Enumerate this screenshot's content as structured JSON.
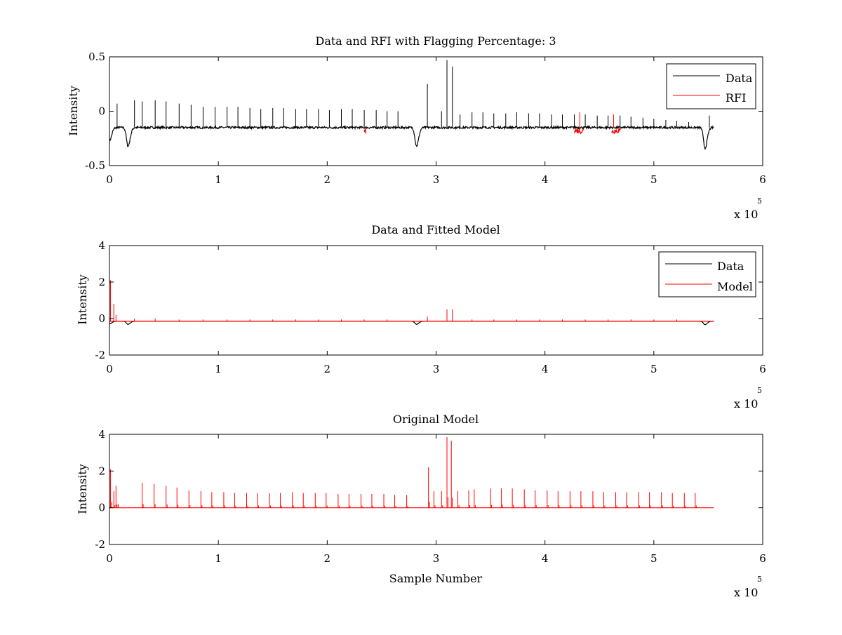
{
  "chart_data": [
    {
      "type": "line",
      "title": "Data and RFI with Flagging Percentage: 3",
      "xlabel": "",
      "ylabel": "Intensity",
      "xlim": [
        0,
        6
      ],
      "ylim": [
        -0.5,
        0.5
      ],
      "xticks": [
        "0",
        "1",
        "2",
        "3",
        "4",
        "5",
        "6"
      ],
      "yticks": [
        "-0.5",
        "0",
        "0.5"
      ],
      "x_multiplier": "x 10",
      "x_multiplier_exponent": "5",
      "grid": false,
      "legend": {
        "placement": "top-right",
        "entries": [
          {
            "label": "Data",
            "color": "#000000"
          },
          {
            "label": "RFI",
            "color": "#ff0000"
          }
        ]
      },
      "series": [
        {
          "name": "Data",
          "color": "#000000",
          "baseline": -0.15,
          "noise": 0.02,
          "x_end": 5.55,
          "dips": [
            {
              "x": 0.0,
              "y": -0.27
            },
            {
              "x": 0.17,
              "y": -0.32
            },
            {
              "x": 2.82,
              "y": -0.32
            },
            {
              "x": 5.47,
              "y": -0.34
            }
          ],
          "spikes": [
            {
              "x": 0.07,
              "y": 0.07
            },
            {
              "x": 0.23,
              "y": 0.1
            },
            {
              "x": 0.3,
              "y": 0.09
            },
            {
              "x": 0.42,
              "y": 0.1
            },
            {
              "x": 0.52,
              "y": 0.09
            },
            {
              "x": 0.64,
              "y": 0.07
            },
            {
              "x": 0.75,
              "y": 0.06
            },
            {
              "x": 0.86,
              "y": 0.04
            },
            {
              "x": 0.97,
              "y": 0.04
            },
            {
              "x": 1.08,
              "y": 0.04
            },
            {
              "x": 1.18,
              "y": 0.04
            },
            {
              "x": 1.29,
              "y": 0.03
            },
            {
              "x": 1.39,
              "y": 0.02
            },
            {
              "x": 1.5,
              "y": 0.03
            },
            {
              "x": 1.6,
              "y": 0.03
            },
            {
              "x": 1.71,
              "y": 0.02
            },
            {
              "x": 1.81,
              "y": 0.02
            },
            {
              "x": 1.92,
              "y": 0.02
            },
            {
              "x": 2.02,
              "y": 0.01
            },
            {
              "x": 2.13,
              "y": 0.02
            },
            {
              "x": 2.23,
              "y": 0.02
            },
            {
              "x": 2.34,
              "y": 0.01
            },
            {
              "x": 2.45,
              "y": 0.01
            },
            {
              "x": 2.55,
              "y": 0.0
            },
            {
              "x": 2.65,
              "y": 0.0
            },
            {
              "x": 2.92,
              "y": 0.25
            },
            {
              "x": 3.05,
              "y": 0.0
            },
            {
              "x": 3.1,
              "y": 0.47
            },
            {
              "x": 3.15,
              "y": 0.41
            },
            {
              "x": 3.22,
              "y": -0.03
            },
            {
              "x": 3.33,
              "y": -0.01
            },
            {
              "x": 3.43,
              "y": -0.01
            },
            {
              "x": 3.53,
              "y": -0.02
            },
            {
              "x": 3.64,
              "y": -0.02
            },
            {
              "x": 3.74,
              "y": -0.01
            },
            {
              "x": 3.85,
              "y": -0.02
            },
            {
              "x": 3.95,
              "y": -0.02
            },
            {
              "x": 4.06,
              "y": -0.03
            },
            {
              "x": 4.16,
              "y": -0.03
            },
            {
              "x": 4.27,
              "y": -0.03
            },
            {
              "x": 4.37,
              "y": -0.03
            },
            {
              "x": 4.48,
              "y": -0.04
            },
            {
              "x": 4.58,
              "y": -0.04
            },
            {
              "x": 4.69,
              "y": -0.04
            },
            {
              "x": 4.79,
              "y": -0.05
            },
            {
              "x": 4.9,
              "y": -0.06
            },
            {
              "x": 5.0,
              "y": -0.07
            },
            {
              "x": 5.11,
              "y": -0.08
            },
            {
              "x": 5.21,
              "y": -0.09
            },
            {
              "x": 5.32,
              "y": -0.1
            },
            {
              "x": 5.51,
              "y": -0.04
            }
          ]
        },
        {
          "name": "RFI",
          "color": "#ff0000",
          "flagged_ranges": [
            [
              2.34,
              2.36
            ],
            [
              4.27,
              4.36
            ],
            [
              4.61,
              4.7
            ]
          ],
          "spikes": [
            {
              "x": 4.32,
              "y": -0.01
            },
            {
              "x": 4.63,
              "y": -0.03
            }
          ]
        }
      ]
    },
    {
      "type": "line",
      "title": "Data and Fitted Model",
      "xlabel": "",
      "ylabel": "Intensity",
      "xlim": [
        0,
        6
      ],
      "ylim": [
        -2,
        4
      ],
      "xticks": [
        "0",
        "1",
        "2",
        "3",
        "4",
        "5",
        "6"
      ],
      "yticks": [
        "-2",
        "0",
        "2",
        "4"
      ],
      "x_multiplier": "x 10",
      "x_multiplier_exponent": "5",
      "grid": false,
      "legend": {
        "placement": "top-right",
        "entries": [
          {
            "label": "Data",
            "color": "#000000"
          },
          {
            "label": "Model",
            "color": "#ff0000"
          }
        ]
      },
      "series": [
        {
          "name": "Data",
          "color": "#000000",
          "baseline": -0.15,
          "x_end": 5.55,
          "dips": [
            {
              "x": 0.0,
              "y": -0.3
            },
            {
              "x": 0.17,
              "y": -0.32
            },
            {
              "x": 2.82,
              "y": -0.32
            },
            {
              "x": 5.47,
              "y": -0.34
            }
          ]
        },
        {
          "name": "Model",
          "color": "#ff0000",
          "baseline": -0.15,
          "x_end": 5.55,
          "spikes": [
            {
              "x": 0.01,
              "y": 2.1
            },
            {
              "x": 0.04,
              "y": 0.8
            },
            {
              "x": 0.06,
              "y": 0.2
            },
            {
              "x": 0.23,
              "y": 0.0
            },
            {
              "x": 0.42,
              "y": 0.0
            },
            {
              "x": 0.64,
              "y": -0.05
            },
            {
              "x": 0.86,
              "y": -0.05
            },
            {
              "x": 1.08,
              "y": -0.05
            },
            {
              "x": 1.29,
              "y": -0.05
            },
            {
              "x": 1.5,
              "y": -0.05
            },
            {
              "x": 1.71,
              "y": -0.05
            },
            {
              "x": 1.92,
              "y": -0.05
            },
            {
              "x": 2.13,
              "y": -0.05
            },
            {
              "x": 2.34,
              "y": -0.05
            },
            {
              "x": 2.55,
              "y": -0.05
            },
            {
              "x": 2.92,
              "y": 0.1
            },
            {
              "x": 3.1,
              "y": 0.5
            },
            {
              "x": 3.15,
              "y": 0.5
            },
            {
              "x": 3.33,
              "y": -0.05
            },
            {
              "x": 3.53,
              "y": -0.05
            },
            {
              "x": 3.74,
              "y": -0.05
            },
            {
              "x": 3.95,
              "y": -0.05
            },
            {
              "x": 4.16,
              "y": -0.05
            },
            {
              "x": 4.37,
              "y": -0.05
            },
            {
              "x": 4.58,
              "y": -0.05
            },
            {
              "x": 4.79,
              "y": -0.05
            },
            {
              "x": 5.0,
              "y": -0.05
            },
            {
              "x": 5.21,
              "y": -0.05
            }
          ]
        }
      ]
    },
    {
      "type": "line",
      "title": "Original Model",
      "xlabel": "Sample Number",
      "ylabel": "Intensity",
      "xlim": [
        0,
        6
      ],
      "ylim": [
        -2,
        4
      ],
      "xticks": [
        "0",
        "1",
        "2",
        "3",
        "4",
        "5",
        "6"
      ],
      "yticks": [
        "-2",
        "0",
        "2",
        "4"
      ],
      "x_multiplier": "x 10",
      "x_multiplier_exponent": "5",
      "grid": false,
      "series": [
        {
          "color": "#ff0000",
          "baseline": 0.0,
          "x_end": 5.55,
          "spikes": [
            {
              "x": 0.01,
              "y": 2.1
            },
            {
              "x": 0.04,
              "y": 0.9
            },
            {
              "x": 0.06,
              "y": 1.2
            },
            {
              "x": 0.08,
              "y": 0.2
            },
            {
              "x": 0.3,
              "y": 1.35
            },
            {
              "x": 0.41,
              "y": 1.3
            },
            {
              "x": 0.52,
              "y": 1.2
            },
            {
              "x": 0.62,
              "y": 1.1
            },
            {
              "x": 0.73,
              "y": 0.95
            },
            {
              "x": 0.84,
              "y": 0.9
            },
            {
              "x": 0.94,
              "y": 0.85
            },
            {
              "x": 1.05,
              "y": 0.85
            },
            {
              "x": 1.15,
              "y": 0.8
            },
            {
              "x": 1.26,
              "y": 0.8
            },
            {
              "x": 1.36,
              "y": 0.8
            },
            {
              "x": 1.47,
              "y": 0.8
            },
            {
              "x": 1.57,
              "y": 0.8
            },
            {
              "x": 1.68,
              "y": 0.85
            },
            {
              "x": 1.78,
              "y": 0.8
            },
            {
              "x": 1.89,
              "y": 0.8
            },
            {
              "x": 1.99,
              "y": 0.8
            },
            {
              "x": 2.1,
              "y": 0.75
            },
            {
              "x": 2.2,
              "y": 0.75
            },
            {
              "x": 2.31,
              "y": 0.75
            },
            {
              "x": 2.41,
              "y": 0.75
            },
            {
              "x": 2.52,
              "y": 0.75
            },
            {
              "x": 2.62,
              "y": 0.7
            },
            {
              "x": 2.73,
              "y": 0.7
            },
            {
              "x": 2.93,
              "y": 2.2
            },
            {
              "x": 2.98,
              "y": 0.9
            },
            {
              "x": 3.05,
              "y": 0.9
            },
            {
              "x": 3.1,
              "y": 3.85
            },
            {
              "x": 3.14,
              "y": 3.65
            },
            {
              "x": 3.2,
              "y": 0.9
            },
            {
              "x": 3.3,
              "y": 0.95
            },
            {
              "x": 3.35,
              "y": 1.0
            },
            {
              "x": 3.5,
              "y": 1.05
            },
            {
              "x": 3.6,
              "y": 1.05
            },
            {
              "x": 3.7,
              "y": 1.05
            },
            {
              "x": 3.81,
              "y": 1.0
            },
            {
              "x": 3.91,
              "y": 0.95
            },
            {
              "x": 4.02,
              "y": 0.95
            },
            {
              "x": 4.12,
              "y": 0.9
            },
            {
              "x": 4.23,
              "y": 0.9
            },
            {
              "x": 4.33,
              "y": 0.9
            },
            {
              "x": 4.44,
              "y": 0.9
            },
            {
              "x": 4.54,
              "y": 0.85
            },
            {
              "x": 4.65,
              "y": 0.85
            },
            {
              "x": 4.75,
              "y": 0.85
            },
            {
              "x": 4.86,
              "y": 0.85
            },
            {
              "x": 4.96,
              "y": 0.85
            },
            {
              "x": 5.07,
              "y": 0.85
            },
            {
              "x": 5.17,
              "y": 0.8
            },
            {
              "x": 5.28,
              "y": 0.8
            },
            {
              "x": 5.38,
              "y": 0.8
            }
          ]
        }
      ]
    }
  ]
}
